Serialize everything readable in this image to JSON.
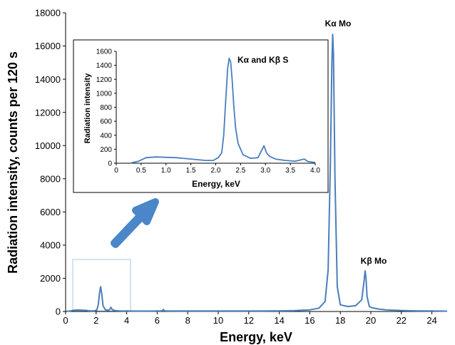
{
  "colors": {
    "line": "#4a7ebb",
    "arrow": "#4a86c8",
    "highlight_box": "#a9c9e0",
    "axis": "#000000"
  },
  "chart_data": [
    {
      "type": "line",
      "title": "",
      "xlabel": "Energy, keV",
      "ylabel": "Radiation intensity, counts per 120 s",
      "xlim": [
        0,
        25
      ],
      "ylim": [
        0,
        18000
      ],
      "xticks": [
        0,
        2,
        4,
        6,
        8,
        10,
        12,
        14,
        16,
        18,
        20,
        22,
        24
      ],
      "xtick_labels": [
        "0",
        "2",
        "4",
        "6",
        "8",
        "10",
        "12",
        "14",
        "16",
        "18",
        "20",
        "22",
        "24"
      ],
      "yticks": [
        0,
        2000,
        4000,
        6000,
        8000,
        10000,
        12000,
        14000,
        16000,
        18000
      ],
      "ytick_labels": [
        "0",
        "2000",
        "4000",
        "6000",
        "8000",
        "10000",
        "12000",
        "14000",
        "16000",
        "18000"
      ],
      "grid": false,
      "series": [
        {
          "x": [
            0.05,
            0.3,
            0.5,
            0.7,
            1.0,
            1.3,
            1.6,
            1.9,
            2.05,
            2.15,
            2.22,
            2.3,
            2.38,
            2.45,
            2.6,
            2.8,
            2.9,
            2.97,
            3.05,
            3.2,
            3.5,
            4.0,
            4.5,
            5.0,
            5.5,
            6.0,
            6.3,
            6.4,
            6.5,
            7.0,
            7.5,
            8.0,
            9.0,
            10.0,
            11.0,
            12.0,
            13.0,
            14.0,
            15.0,
            16.0,
            16.6,
            17.0,
            17.2,
            17.35,
            17.45,
            17.5,
            17.55,
            17.65,
            17.8,
            18.0,
            18.5,
            19.0,
            19.4,
            19.55,
            19.62,
            19.68,
            19.75,
            19.9,
            20.1,
            20.5,
            21.0,
            22.0,
            23.0,
            24.0,
            25.0
          ],
          "values": [
            10,
            30,
            70,
            90,
            80,
            70,
            40,
            40,
            100,
            450,
            1100,
            1500,
            1000,
            350,
            110,
            60,
            150,
            250,
            120,
            60,
            40,
            30,
            25,
            25,
            25,
            30,
            40,
            120,
            40,
            30,
            30,
            30,
            30,
            30,
            30,
            30,
            35,
            40,
            50,
            100,
            200,
            600,
            2500,
            9000,
            15000,
            16700,
            15500,
            8000,
            1500,
            400,
            300,
            350,
            700,
            1800,
            2450,
            2000,
            900,
            300,
            220,
            150,
            100,
            60,
            40,
            30,
            20
          ]
        }
      ],
      "annotations": [
        "Kα Mo",
        "Kβ Mo"
      ]
    },
    {
      "type": "line",
      "title": "",
      "xlabel": "Energy, keV",
      "ylabel": "Radiation intensity",
      "xlim": [
        0,
        4.0
      ],
      "ylim": [
        0,
        1600
      ],
      "xticks": [
        0,
        0.5,
        1.0,
        1.5,
        2.0,
        2.5,
        3.0,
        3.5,
        4.0
      ],
      "xtick_labels": [
        "0",
        "0.5",
        "1.0",
        "1.5",
        "2.0",
        "2.5",
        "3.0",
        "3.5",
        "4.0"
      ],
      "yticks": [
        0,
        200,
        400,
        600,
        800,
        1000,
        1200,
        1400,
        1600
      ],
      "ytick_labels": [
        "0",
        "200",
        "400",
        "600",
        "800",
        "1000",
        "1200",
        "1400",
        "1600"
      ],
      "grid": false,
      "series": [
        {
          "x": [
            0.3,
            0.45,
            0.6,
            0.8,
            1.0,
            1.2,
            1.5,
            1.8,
            1.95,
            2.05,
            2.12,
            2.16,
            2.2,
            2.24,
            2.27,
            2.3,
            2.33,
            2.36,
            2.4,
            2.45,
            2.55,
            2.7,
            2.85,
            2.92,
            2.97,
            3.02,
            3.08,
            3.2,
            3.4,
            3.6,
            3.72,
            3.78,
            3.85,
            4.0
          ],
          "values": [
            5,
            30,
            80,
            90,
            85,
            80,
            60,
            40,
            40,
            80,
            150,
            400,
            900,
            1350,
            1500,
            1450,
            1200,
            850,
            500,
            280,
            120,
            70,
            80,
            180,
            250,
            150,
            100,
            60,
            40,
            30,
            50,
            60,
            25,
            10
          ]
        }
      ],
      "annotations": [
        "Kα and Kβ S"
      ]
    }
  ]
}
